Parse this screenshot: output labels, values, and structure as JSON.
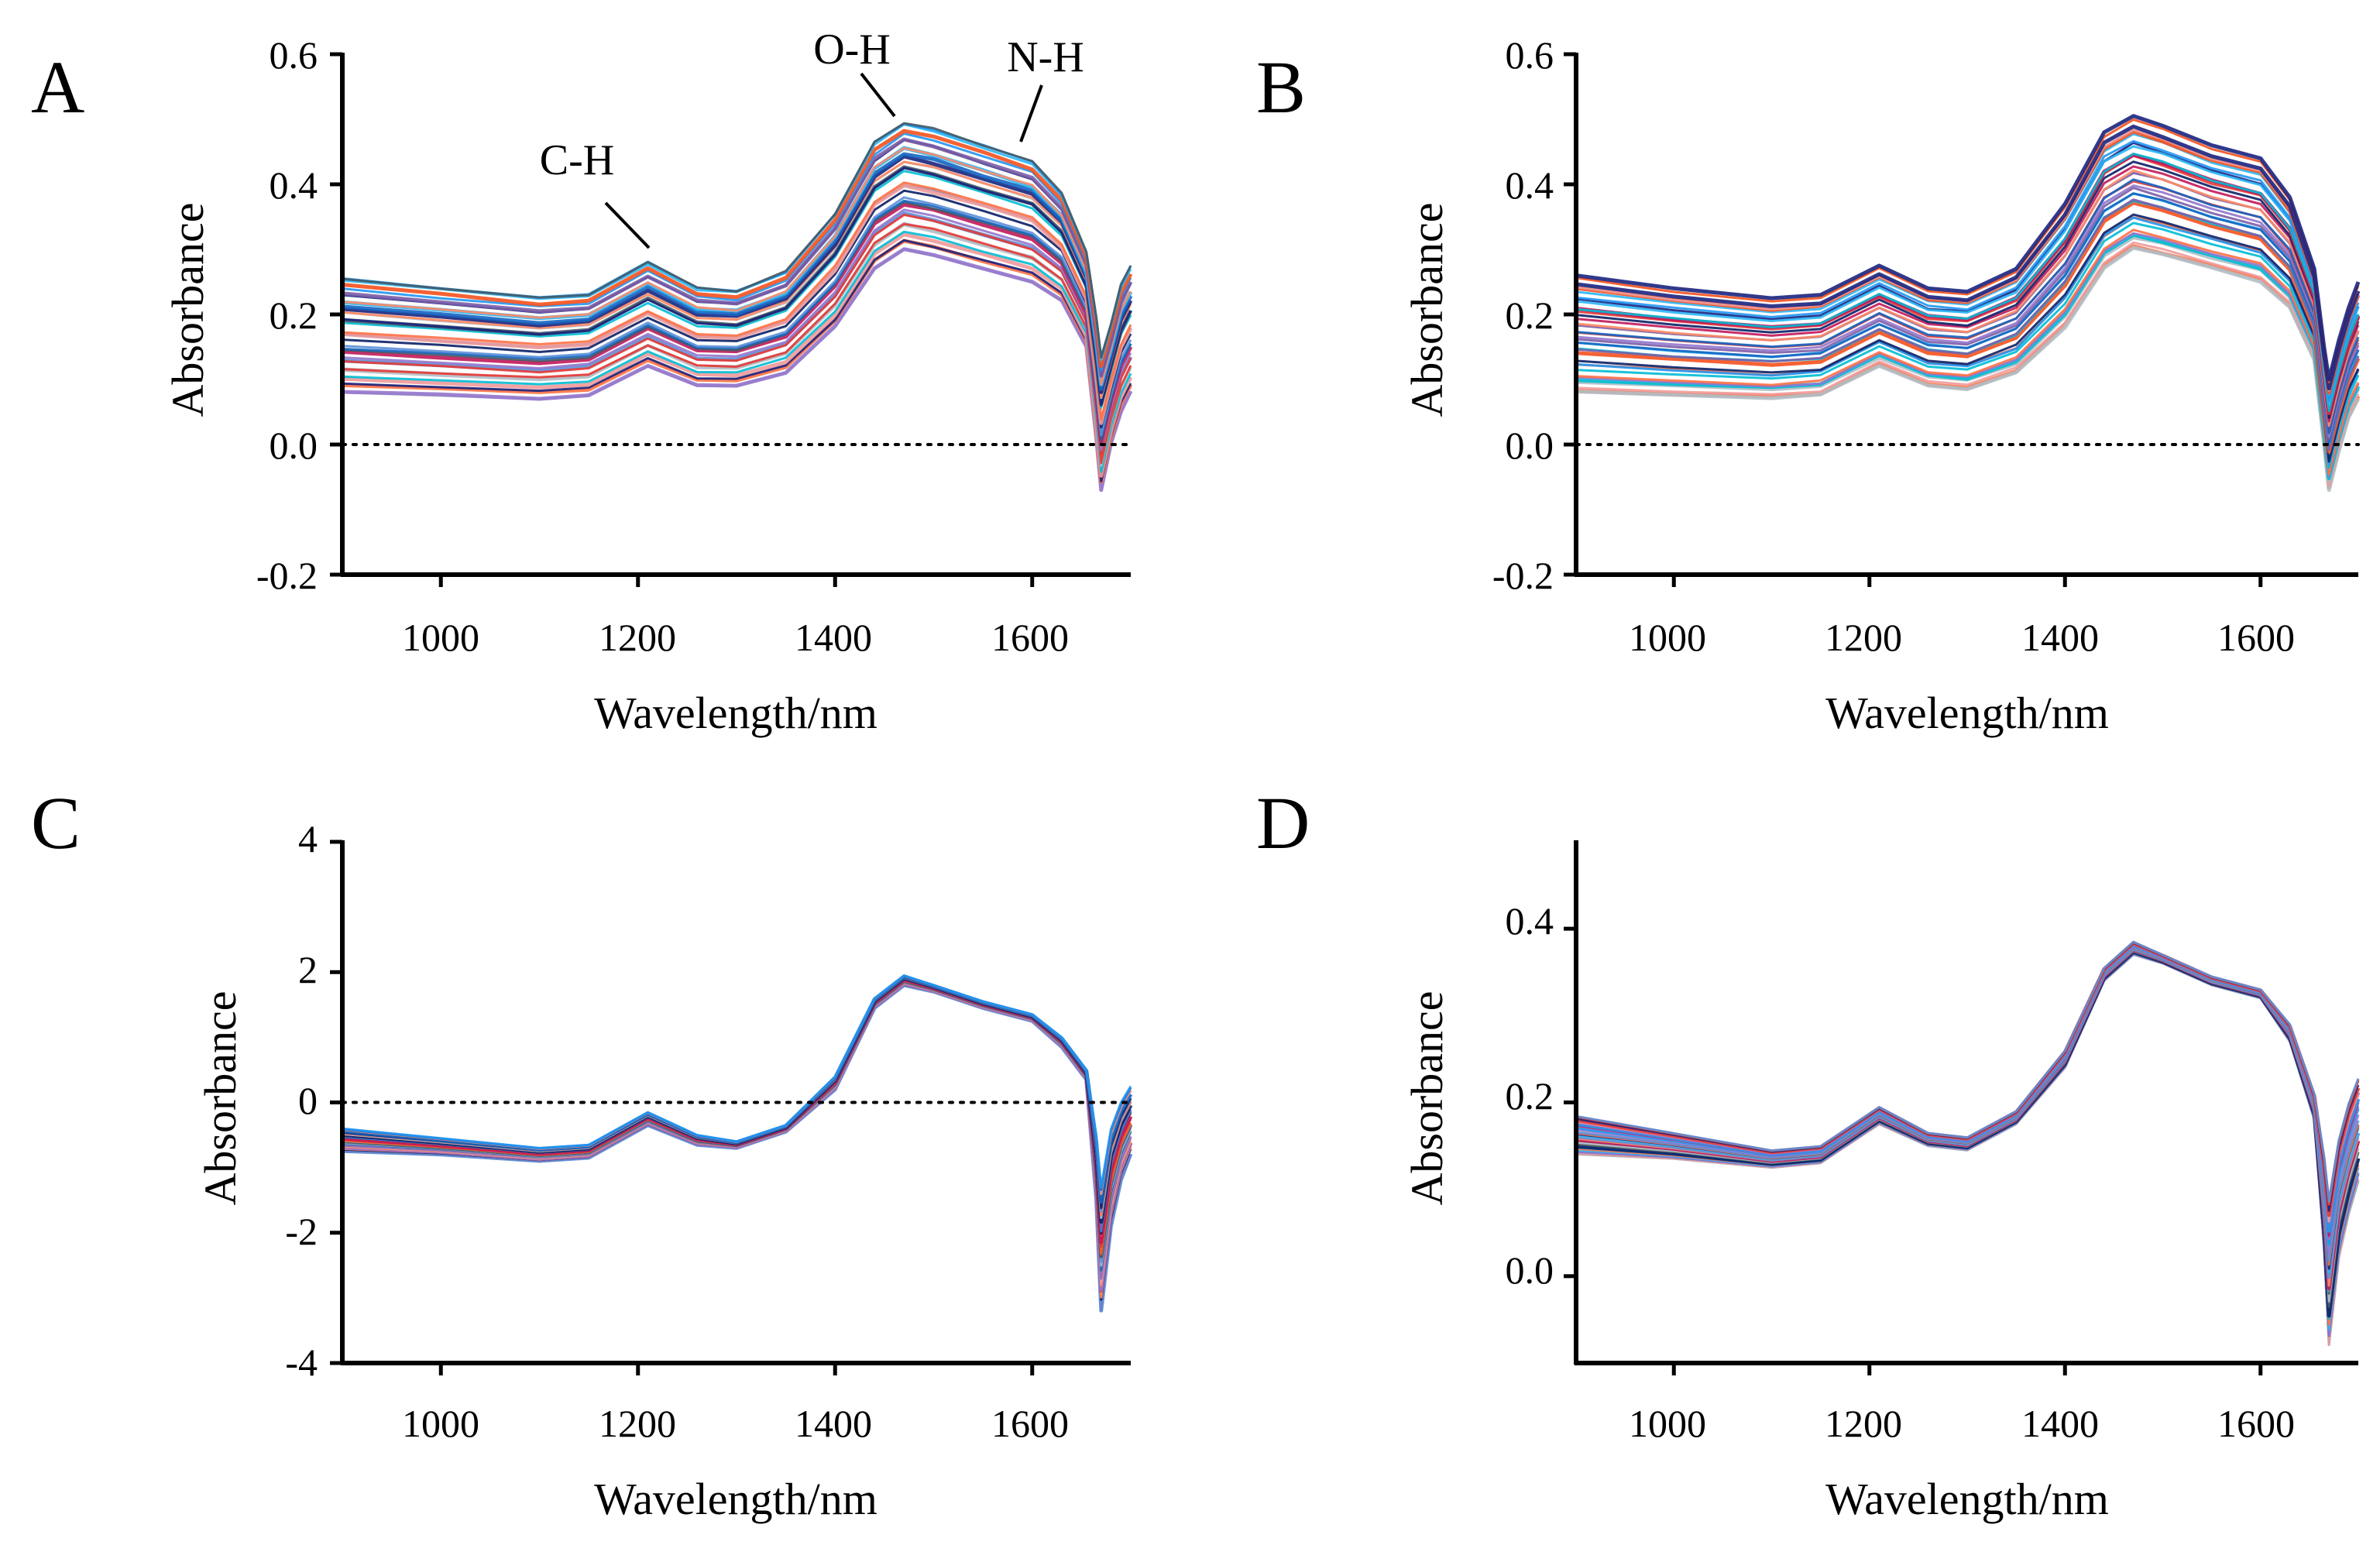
{
  "figure": {
    "description_colors": {
      "palette": [
        "#0b1f66",
        "#1a237e",
        "#1565c0",
        "#2196f3",
        "#29b6f6",
        "#00bcd4",
        "#5c8fd6",
        "#7b5ea7",
        "#9575cd",
        "#c2185b",
        "#e53935",
        "#f4511e",
        "#ff7043",
        "#ff8a65",
        "#ef9a9a",
        "#b0bec5",
        "#455a64"
      ],
      "zero_line": "#000000"
    }
  },
  "chart_data": [
    {
      "panel": "A",
      "type": "line",
      "title": "",
      "xlabel": "Wavelength/nm",
      "ylabel": "Absorbance",
      "xlim": [
        900,
        1700
      ],
      "ylim": [
        -0.2,
        0.6
      ],
      "xticks": [
        "1000",
        "1200",
        "1400",
        "1600"
      ],
      "yticks": [
        "-0.2",
        "0.0",
        "0.2",
        "0.4",
        "0.6"
      ],
      "zero_line": true,
      "annotations": [
        "C-H",
        "O-H",
        "N-H"
      ],
      "n_series": 36,
      "x": [
        900,
        1000,
        1100,
        1150,
        1210,
        1260,
        1300,
        1350,
        1400,
        1440,
        1470,
        1500,
        1550,
        1600,
        1630,
        1655,
        1665,
        1670,
        1680,
        1690,
        1700
      ],
      "series_summary": {
        "upper": [
          0.26,
          0.245,
          0.23,
          0.235,
          0.285,
          0.245,
          0.24,
          0.27,
          0.36,
          0.47,
          0.5,
          0.49,
          0.465,
          0.44,
          0.39,
          0.3,
          0.2,
          0.14,
          0.19,
          0.25,
          0.28
        ],
        "lower": [
          0.08,
          0.075,
          0.07,
          0.075,
          0.12,
          0.09,
          0.09,
          0.11,
          0.18,
          0.27,
          0.3,
          0.29,
          0.27,
          0.25,
          0.22,
          0.15,
          0.01,
          -0.07,
          0.0,
          0.05,
          0.08
        ]
      }
    },
    {
      "panel": "B",
      "type": "line",
      "title": "",
      "xlabel": "Wavelength/nm",
      "ylabel": "Absorbance",
      "xlim": [
        900,
        1700
      ],
      "ylim": [
        -0.2,
        0.6
      ],
      "xticks": [
        "1000",
        "1200",
        "1400",
        "1600"
      ],
      "yticks": [
        "-0.2",
        "0.0",
        "0.2",
        "0.4",
        "0.6"
      ],
      "zero_line": true,
      "n_series": 36,
      "x": [
        900,
        1000,
        1100,
        1150,
        1210,
        1260,
        1300,
        1350,
        1400,
        1440,
        1470,
        1500,
        1550,
        1600,
        1630,
        1655,
        1665,
        1670,
        1680,
        1690,
        1700
      ],
      "series_summary": {
        "upper": [
          0.26,
          0.24,
          0.225,
          0.23,
          0.275,
          0.24,
          0.235,
          0.27,
          0.37,
          0.48,
          0.505,
          0.49,
          0.46,
          0.44,
          0.38,
          0.27,
          0.15,
          0.1,
          0.16,
          0.21,
          0.25
        ],
        "lower": [
          0.08,
          0.075,
          0.07,
          0.075,
          0.12,
          0.09,
          0.085,
          0.11,
          0.18,
          0.27,
          0.3,
          0.29,
          0.27,
          0.25,
          0.21,
          0.13,
          0.0,
          -0.07,
          -0.01,
          0.04,
          0.07
        ]
      }
    },
    {
      "panel": "C",
      "type": "line",
      "title": "",
      "xlabel": "Wavelength/nm",
      "ylabel": "Absorbance",
      "xlim": [
        900,
        1700
      ],
      "ylim": [
        -4,
        4
      ],
      "xticks": [
        "1000",
        "1200",
        "1400",
        "1600"
      ],
      "yticks": [
        "-4",
        "-2",
        "0",
        "2",
        "4"
      ],
      "zero_line": true,
      "n_series": 36,
      "x": [
        900,
        1000,
        1100,
        1150,
        1210,
        1260,
        1300,
        1350,
        1400,
        1440,
        1470,
        1500,
        1550,
        1600,
        1630,
        1655,
        1665,
        1670,
        1680,
        1690,
        1700
      ],
      "series_summary": {
        "upper": [
          -0.4,
          -0.55,
          -0.7,
          -0.65,
          -0.15,
          -0.5,
          -0.6,
          -0.35,
          0.4,
          1.6,
          1.95,
          1.8,
          1.55,
          1.35,
          1.0,
          0.5,
          -0.5,
          -1.3,
          -0.4,
          0.0,
          0.25
        ],
        "lower": [
          -0.75,
          -0.8,
          -0.9,
          -0.85,
          -0.35,
          -0.65,
          -0.7,
          -0.45,
          0.2,
          1.45,
          1.8,
          1.7,
          1.45,
          1.25,
          0.85,
          0.35,
          -1.5,
          -3.2,
          -1.9,
          -1.2,
          -0.8
        ]
      }
    },
    {
      "panel": "D",
      "type": "line",
      "title": "",
      "xlabel": "Wavelength/nm",
      "ylabel": "Absorbance",
      "xlim": [
        900,
        1700
      ],
      "ylim": [
        -0.1,
        0.5
      ],
      "xticks": [
        "1000",
        "1200",
        "1400",
        "1600"
      ],
      "yticks": [
        "0.0",
        "0.2",
        "0.4"
      ],
      "zero_line": false,
      "n_series": 36,
      "x": [
        900,
        1000,
        1100,
        1150,
        1210,
        1260,
        1300,
        1350,
        1400,
        1440,
        1470,
        1500,
        1550,
        1600,
        1630,
        1655,
        1665,
        1670,
        1680,
        1690,
        1700
      ],
      "series_summary": {
        "upper": [
          0.185,
          0.165,
          0.145,
          0.15,
          0.195,
          0.165,
          0.16,
          0.19,
          0.26,
          0.355,
          0.385,
          0.37,
          0.345,
          0.33,
          0.29,
          0.21,
          0.14,
          0.09,
          0.16,
          0.2,
          0.23
        ],
        "lower": [
          0.14,
          0.135,
          0.125,
          0.13,
          0.175,
          0.15,
          0.145,
          0.175,
          0.24,
          0.34,
          0.37,
          0.36,
          0.335,
          0.32,
          0.27,
          0.18,
          0.03,
          -0.08,
          0.02,
          0.07,
          0.11
        ]
      }
    }
  ]
}
